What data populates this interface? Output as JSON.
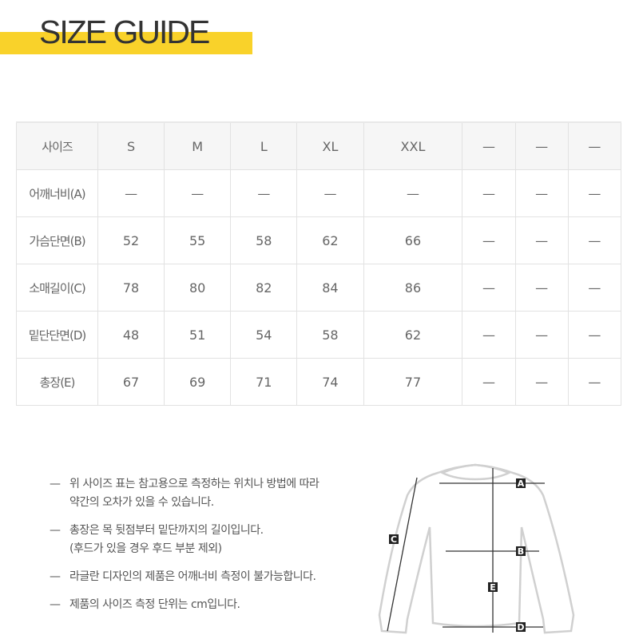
{
  "header": {
    "title": "SIZE GUIDE",
    "accent": "#f9d22a"
  },
  "table": {
    "header": [
      "사이즈",
      "S",
      "M",
      "L",
      "XL",
      "XXL",
      "—",
      "—",
      "—"
    ],
    "rows": [
      [
        "어깨너비(A)",
        "—",
        "—",
        "—",
        "—",
        "—",
        "—",
        "—",
        "—"
      ],
      [
        "가슴단면(B)",
        "52",
        "55",
        "58",
        "62",
        "66",
        "—",
        "—",
        "—"
      ],
      [
        "소매길이(C)",
        "78",
        "80",
        "82",
        "84",
        "86",
        "—",
        "—",
        "—"
      ],
      [
        "밑단단면(D)",
        "48",
        "51",
        "54",
        "58",
        "62",
        "—",
        "—",
        "—"
      ],
      [
        "총장(E)",
        "67",
        "69",
        "71",
        "74",
        "77",
        "—",
        "—",
        "—"
      ]
    ]
  },
  "notes": [
    {
      "dash": "—",
      "lines": [
        "위 사이즈 표는 참고용으로 측정하는 위치나 방법에 따라",
        "약간의 오차가 있을 수 있습니다."
      ]
    },
    {
      "dash": "—",
      "lines": [
        "총장은 목 뒷점부터 밑단까지의 길이입니다.",
        "(후드가 있을 경우 후드 부분 제외)"
      ]
    },
    {
      "dash": "—",
      "lines": [
        "라글란 디자인의 제품은 어깨너비 측정이 불가능합니다."
      ]
    },
    {
      "dash": "—",
      "lines": [
        "제품의 사이즈 측정 단위는 cm입니다."
      ]
    }
  ],
  "diagram": {
    "labels": {
      "a": "A",
      "b": "B",
      "c": "C",
      "d": "D",
      "e": "E"
    }
  }
}
